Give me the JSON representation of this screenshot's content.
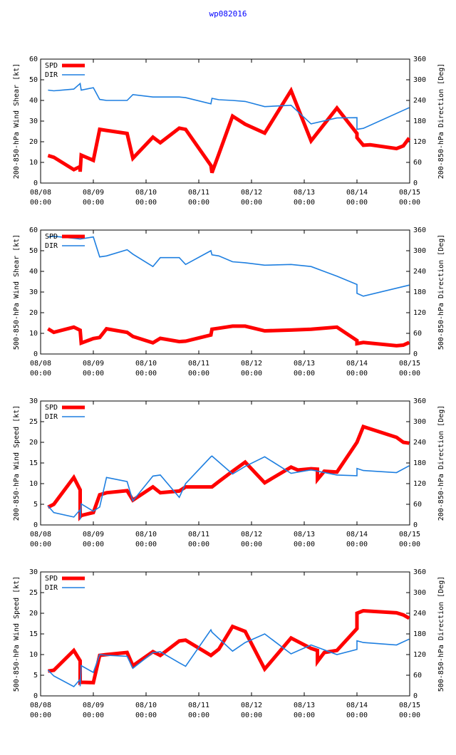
{
  "title": "wp082016",
  "colors": {
    "spd": "#ff0000",
    "dir": "#1e7fe0",
    "frame": "#000000"
  },
  "chart_data": [
    {
      "type": "line",
      "ylabel": "200-850-hPa Wind Shear [kt]",
      "y2label": "200-850-hPa Direction [Deg]",
      "xlim": [
        0,
        7
      ],
      "ylim": [
        0,
        60
      ],
      "y2lim": [
        0,
        360
      ],
      "xticks": [
        "08/08\n00:00",
        "08/09\n00:00",
        "08/10\n00:00",
        "08/11\n00:00",
        "08/12\n00:00",
        "08/13\n00:00",
        "08/14\n00:00",
        "08/15\n00:00"
      ],
      "yticks": [
        0,
        10,
        20,
        30,
        40,
        50,
        60
      ],
      "y2ticks": [
        0,
        60,
        120,
        180,
        240,
        300,
        360
      ],
      "series": [
        {
          "name": "SPD",
          "axis": "y",
          "x": [
            0.14,
            0.25,
            0.63,
            0.75,
            0.75,
            0.77,
            1.0,
            1.12,
            1.25,
            1.64,
            1.75,
            2.13,
            2.27,
            2.63,
            2.75,
            3.23,
            3.25,
            3.38,
            3.64,
            3.88,
            4.25,
            4.75,
            5.13,
            5.62,
            6.0,
            6.0,
            6.12,
            6.25,
            6.75,
            6.88,
            6.99
          ],
          "values": [
            13.3,
            12.5,
            6.5,
            8,
            5.5,
            13.5,
            11.0,
            26,
            25.5,
            24.0,
            12,
            22.2,
            19.5,
            26.6,
            26.0,
            8.5,
            5.0,
            14,
            32.4,
            28.5,
            24.2,
            44.8,
            20.4,
            36.3,
            24.0,
            22.0,
            18.3,
            18.5,
            16.7,
            18.0,
            21.8
          ]
        },
        {
          "name": "DIR",
          "axis": "y2",
          "x": [
            0.14,
            0.25,
            0.63,
            0.75,
            0.77,
            1.0,
            1.12,
            1.25,
            1.64,
            1.75,
            2.13,
            2.27,
            2.63,
            2.75,
            3.23,
            3.25,
            3.38,
            3.64,
            3.88,
            4.25,
            4.75,
            5.13,
            5.62,
            6.0,
            6.0,
            6.12,
            6.99
          ],
          "values": [
            270,
            268,
            273,
            289,
            270,
            277,
            243,
            240,
            240,
            257,
            250,
            250,
            250,
            248,
            230,
            246,
            242,
            240,
            237,
            222,
            226,
            172,
            189,
            190,
            156,
            159,
            219
          ]
        }
      ]
    },
    {
      "type": "line",
      "ylabel": "500-850-hPa Wind Shear [kt]",
      "y2label": "500-850-hPa Direction [Deg]",
      "xlim": [
        0,
        7
      ],
      "ylim": [
        0,
        60
      ],
      "y2lim": [
        0,
        360
      ],
      "xticks": [
        "08/08\n00:00",
        "08/09\n00:00",
        "08/10\n00:00",
        "08/11\n00:00",
        "08/12\n00:00",
        "08/13\n00:00",
        "08/14\n00:00",
        "08/15\n00:00"
      ],
      "yticks": [
        0,
        10,
        20,
        30,
        40,
        50,
        60
      ],
      "y2ticks": [
        0,
        60,
        120,
        180,
        240,
        300,
        360
      ],
      "series": [
        {
          "name": "SPD",
          "axis": "y",
          "x": [
            0.14,
            0.25,
            0.63,
            0.75,
            0.77,
            1.0,
            1.12,
            1.25,
            1.64,
            1.75,
            2.13,
            2.27,
            2.63,
            2.75,
            3.23,
            3.25,
            3.38,
            3.64,
            3.88,
            4.25,
            4.75,
            5.13,
            5.62,
            6.0,
            6.0,
            6.12,
            6.75,
            6.88,
            6.99
          ],
          "values": [
            12.2,
            10.5,
            13.0,
            11.5,
            5.3,
            7.5,
            8.0,
            12.2,
            10.5,
            8.5,
            5.4,
            7.6,
            6.0,
            6.2,
            9.2,
            12,
            12.5,
            13.5,
            13.5,
            11.2,
            11.6,
            12.0,
            13.0,
            6.5,
            5.0,
            5.6,
            4.0,
            4.3,
            5.6
          ]
        },
        {
          "name": "DIR",
          "axis": "y2",
          "x": [
            0.14,
            0.25,
            0.63,
            0.75,
            1.0,
            1.12,
            1.25,
            1.64,
            1.75,
            2.13,
            2.27,
            2.63,
            2.75,
            3.23,
            3.25,
            3.38,
            3.64,
            3.88,
            4.25,
            4.75,
            5.13,
            5.62,
            6.0,
            6.0,
            6.12,
            6.99
          ],
          "values": [
            340,
            342,
            336,
            334,
            340,
            282,
            285,
            303,
            290,
            254,
            280,
            280,
            260,
            300,
            288,
            285,
            268,
            265,
            258,
            260,
            254,
            226,
            202,
            176,
            168,
            200
          ]
        }
      ]
    },
    {
      "type": "line",
      "ylabel": "200-850-hPa Wind Speed [kt]",
      "y2label": "200-850-hPa Direction [Deg]",
      "xlim": [
        0,
        7
      ],
      "ylim": [
        0,
        30
      ],
      "y2lim": [
        0,
        360
      ],
      "xticks": [
        "08/08\n00:00",
        "08/09\n00:00",
        "08/10\n00:00",
        "08/11\n00:00",
        "08/12\n00:00",
        "08/13\n00:00",
        "08/14\n00:00",
        "08/15\n00:00"
      ],
      "yticks": [
        0,
        5,
        10,
        15,
        20,
        25,
        30
      ],
      "y2ticks": [
        0,
        60,
        120,
        180,
        240,
        300,
        360
      ],
      "series": [
        {
          "name": "SPD",
          "axis": "y",
          "x": [
            0.14,
            0.25,
            0.63,
            0.75,
            0.75,
            0.77,
            1.0,
            1.12,
            1.25,
            1.64,
            1.75,
            2.13,
            2.27,
            2.63,
            2.75,
            3.23,
            3.25,
            3.38,
            3.64,
            3.88,
            4.25,
            4.75,
            4.88,
            5.13,
            5.25,
            5.25,
            5.38,
            5.62,
            6.0,
            6.12,
            6.75,
            6.88,
            6.99
          ],
          "values": [
            4.3,
            5.0,
            11.5,
            8.5,
            2.0,
            2.3,
            3.0,
            7.3,
            7.8,
            8.3,
            6.0,
            9.2,
            7.8,
            8.2,
            9.2,
            9.2,
            9.2,
            10.5,
            13.0,
            15.2,
            10.2,
            14.0,
            13.3,
            13.6,
            13.5,
            11.0,
            13.0,
            12.8,
            20.0,
            23.8,
            21.2,
            20.0,
            19.8
          ]
        },
        {
          "name": "DIR",
          "axis": "y2",
          "x": [
            0.14,
            0.25,
            0.63,
            0.75,
            0.75,
            0.77,
            1.0,
            1.12,
            1.25,
            1.64,
            1.75,
            2.13,
            2.27,
            2.63,
            2.75,
            3.23,
            3.25,
            3.64,
            3.88,
            4.25,
            4.75,
            5.13,
            5.62,
            6.0,
            6.0,
            6.12,
            6.75,
            6.99
          ],
          "values": [
            55,
            36,
            23,
            44,
            16,
            61,
            40,
            52,
            138,
            126,
            70,
            142,
            145,
            80,
            120,
            198,
            200,
            148,
            170,
            198,
            150,
            160,
            145,
            143,
            164,
            158,
            152,
            172
          ]
        }
      ]
    },
    {
      "type": "line",
      "ylabel": "500-850-hPa Wind Speed [kt]",
      "y2label": "500-850-hPa Direction [Deg]",
      "xlim": [
        0,
        7
      ],
      "ylim": [
        0,
        30
      ],
      "y2lim": [
        0,
        360
      ],
      "xticks": [
        "08/08\n00:00",
        "08/09\n00:00",
        "08/10\n00:00",
        "08/11\n00:00",
        "08/12\n00:00",
        "08/13\n00:00",
        "08/14\n00:00",
        "08/15\n00:00"
      ],
      "yticks": [
        0,
        5,
        10,
        15,
        20,
        25,
        30
      ],
      "y2ticks": [
        0,
        60,
        120,
        180,
        240,
        300,
        360
      ],
      "series": [
        {
          "name": "SPD",
          "axis": "y",
          "x": [
            0.14,
            0.25,
            0.63,
            0.75,
            0.75,
            0.77,
            1.0,
            1.12,
            1.25,
            1.64,
            1.75,
            2.13,
            2.27,
            2.63,
            2.75,
            3.23,
            3.25,
            3.38,
            3.64,
            3.88,
            4.25,
            4.75,
            5.13,
            5.25,
            5.25,
            5.38,
            5.62,
            6.0,
            6.0,
            6.12,
            6.75,
            6.88,
            6.99
          ],
          "values": [
            6.0,
            6.2,
            11.0,
            8.5,
            3.2,
            3.3,
            3.2,
            9.8,
            10.0,
            10.5,
            7.3,
            10.7,
            9.8,
            13.3,
            13.5,
            9.8,
            10.0,
            11.3,
            16.8,
            15.6,
            6.5,
            14.0,
            11.5,
            11.0,
            8.3,
            10.5,
            11.0,
            16.3,
            20.0,
            20.6,
            20.1,
            19.6,
            18.8
          ]
        },
        {
          "name": "DIR",
          "axis": "y2",
          "x": [
            0.14,
            0.25,
            0.63,
            0.75,
            0.75,
            0.77,
            1.0,
            1.12,
            1.25,
            1.64,
            1.75,
            2.13,
            2.27,
            2.63,
            2.75,
            3.23,
            3.25,
            3.64,
            3.88,
            4.25,
            4.75,
            5.13,
            5.62,
            6.0,
            6.0,
            6.12,
            6.75,
            6.99
          ],
          "values": [
            75,
            58,
            27,
            48,
            28,
            88,
            68,
            120,
            118,
            115,
            80,
            126,
            128,
            96,
            86,
            192,
            185,
            130,
            155,
            180,
            122,
            148,
            120,
            135,
            160,
            155,
            148,
            165
          ]
        }
      ]
    }
  ]
}
